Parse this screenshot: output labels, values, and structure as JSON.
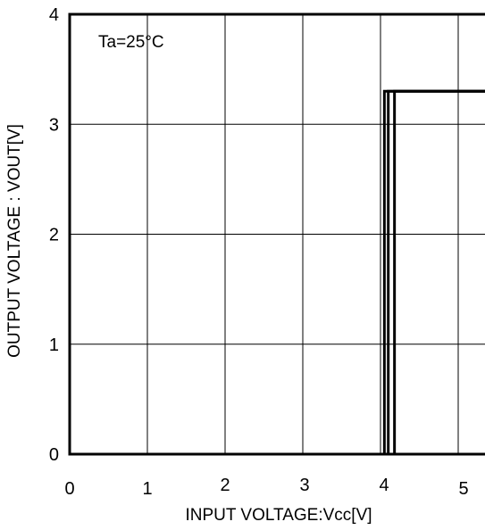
{
  "chart_data": {
    "type": "line",
    "annotation": "Ta=25°C",
    "xlabel": "INPUT VOLTAGE:Vcc[V]",
    "ylabel": "OUTPUT VOLTAGE : VOUT[V]",
    "xlim": [
      0,
      5.5
    ],
    "ylim": [
      0,
      4
    ],
    "x_ticks": [
      0,
      1,
      2,
      3,
      4,
      5
    ],
    "y_ticks": [
      0,
      1,
      2,
      3,
      4
    ],
    "x_tick_labels": [
      "0",
      "1",
      "2",
      "3",
      "4",
      "5"
    ],
    "y_tick_labels": [
      "0",
      "1",
      "2",
      "3",
      "4"
    ],
    "grid": true,
    "series": [
      {
        "points": [
          [
            0,
            0
          ],
          [
            4.05,
            0
          ],
          [
            4.05,
            3.3
          ],
          [
            5.5,
            3.3
          ]
        ]
      },
      {
        "points": [
          [
            0,
            0
          ],
          [
            4.1,
            0
          ],
          [
            4.1,
            3.3
          ],
          [
            5.5,
            3.3
          ]
        ]
      },
      {
        "points": [
          [
            0,
            0
          ],
          [
            4.18,
            0
          ],
          [
            4.18,
            3.3
          ],
          [
            5.5,
            3.3
          ]
        ]
      }
    ]
  }
}
